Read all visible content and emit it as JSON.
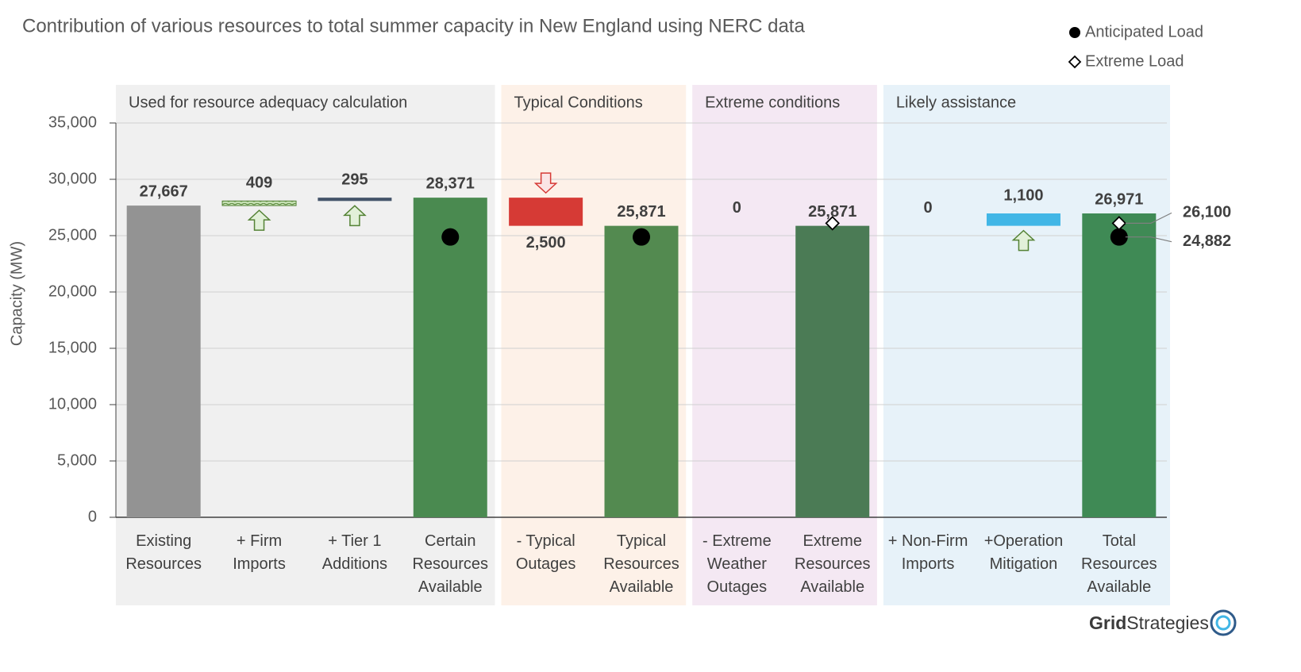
{
  "chart_data": {
    "type": "waterfall",
    "title": "Contribution of various resources to total summer capacity in New England using NERC data",
    "y_label": "Capacity (MW)",
    "ylim": [
      0,
      35000
    ],
    "yticks": [
      0,
      {
        "value": 5000,
        "label": "5,000"
      },
      {
        "value": 10000,
        "label": "10,000"
      },
      {
        "value": 15000,
        "label": "15,000"
      },
      {
        "value": 20000,
        "label": "20,000"
      },
      {
        "value": 25000,
        "label": "25,000"
      },
      {
        "value": 30000,
        "label": "30,000"
      },
      {
        "value": 35000,
        "label": "35,000"
      }
    ],
    "grid": true,
    "categories": [
      "Existing Resources",
      "+ Firm Imports",
      "+ Tier 1 Additions",
      "Certain Resources Available",
      "- Typical Outages",
      "Typical Resources Available",
      "- Extreme Weather Outages",
      "Extreme Resources Available",
      "+ Non-Firm Imports",
      "+Operation Mitigation",
      "Total Resources Available"
    ],
    "kinds": [
      "total",
      "increase",
      "increase",
      "total",
      "decrease",
      "total",
      "decrease",
      "total",
      "increase",
      "increase",
      "total"
    ],
    "colors": [
      "#939393",
      "#c5e0b3",
      "#44546a",
      "#4a8a50",
      "#d63a35",
      "#538a50",
      "#c00000",
      "#4b7b55",
      "#41b6e6",
      "#41b6e6",
      "#3f8a55"
    ],
    "values": [
      27667,
      409,
      295,
      28371,
      2500,
      25871,
      0,
      25871,
      0,
      1100,
      26971
    ],
    "value_labels": [
      "27,667",
      "409",
      "295",
      "28,371",
      "2,500",
      "25,871",
      "0",
      "25,871",
      "0",
      "1,100",
      "26,971"
    ],
    "series": [
      {
        "name": "Anticipated Load",
        "marker": "circle",
        "color": "#000000",
        "values": [
          null,
          null,
          null,
          24882,
          null,
          24882,
          null,
          null,
          null,
          null,
          24882
        ],
        "value_labels": [
          null,
          null,
          null,
          null,
          null,
          null,
          null,
          null,
          null,
          null,
          "24,882"
        ]
      },
      {
        "name": "Extreme Load",
        "marker": "diamond",
        "color": "#000000",
        "values": [
          null,
          null,
          null,
          null,
          null,
          null,
          null,
          26100,
          null,
          null,
          26100
        ],
        "value_labels": [
          null,
          null,
          null,
          null,
          null,
          null,
          null,
          null,
          null,
          null,
          "26,100"
        ]
      }
    ],
    "groups": [
      {
        "label": "Used for resource adequacy calculation",
        "start": 0,
        "end": 3,
        "color": "#f0f0f0"
      },
      {
        "label": "Typical Conditions",
        "start": 4,
        "end": 5,
        "color": "#fdf1e8"
      },
      {
        "label": "Extreme conditions",
        "start": 6,
        "end": 7,
        "color": "#f4e8f3"
      },
      {
        "label": "Likely assistance",
        "start": 8,
        "end": 10,
        "color": "#e7f2f9"
      }
    ]
  },
  "logo": {
    "bold": "Grid",
    "rest": "Strategies"
  }
}
